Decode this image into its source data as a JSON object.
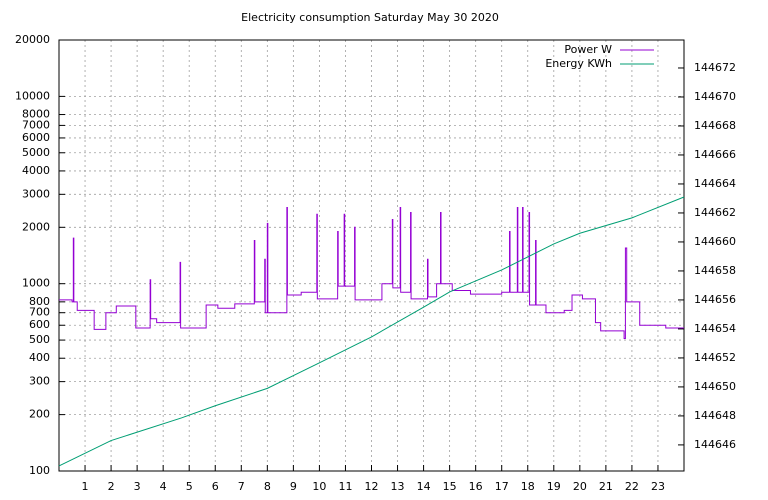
{
  "chart_data": {
    "type": "line",
    "title": "Electricity consumption Saturday May 30 2020",
    "xlim": [
      0,
      24
    ],
    "xticks": [
      1,
      2,
      3,
      4,
      5,
      6,
      7,
      8,
      9,
      10,
      11,
      12,
      13,
      14,
      15,
      16,
      17,
      18,
      19,
      20,
      21,
      22,
      23
    ],
    "ylim": [
      100,
      20000
    ],
    "log_y": true,
    "yticks": [
      100,
      200,
      300,
      400,
      500,
      600,
      700,
      800,
      1000,
      2000,
      3000,
      4000,
      5000,
      6000,
      7000,
      8000,
      10000,
      20000
    ],
    "y2lim": [
      144644.2,
      144673.93
    ],
    "y2ticks": [
      144646,
      144648,
      144650,
      144652,
      144654,
      144656,
      144658,
      144660,
      144662,
      144664,
      144666,
      144668,
      144670,
      144672
    ],
    "grid": true,
    "legend": "top-right",
    "series": [
      {
        "name": "Power W",
        "color": "#9400d3",
        "x": [
          0,
          0.5,
          0.5,
          0.55,
          0.55,
          0.57,
          0.57,
          0.7,
          0.7,
          1.35,
          1.35,
          1.8,
          1.8,
          2.2,
          2.2,
          2.95,
          2.95,
          3.5,
          3.5,
          3.52,
          3.52,
          3.75,
          3.75,
          4.65,
          4.65,
          4.67,
          4.67,
          5.65,
          5.65,
          6.1,
          6.1,
          6.75,
          6.75,
          7.5,
          7.5,
          7.52,
          7.52,
          7.9,
          7.9,
          7.92,
          7.92,
          8.0,
          8.0,
          8.02,
          8.02,
          8.75,
          8.75,
          8.77,
          8.77,
          9.3,
          9.3,
          9.9,
          9.9,
          9.92,
          9.92,
          10.7,
          10.7,
          10.72,
          10.72,
          10.95,
          10.95,
          10.97,
          10.97,
          11.35,
          11.35,
          11.37,
          11.37,
          12.4,
          12.4,
          12.8,
          12.8,
          12.82,
          12.82,
          13.1,
          13.1,
          13.12,
          13.12,
          13.5,
          13.5,
          13.52,
          13.52,
          14.15,
          14.15,
          14.17,
          14.17,
          14.5,
          14.5,
          14.65,
          14.65,
          14.67,
          14.67,
          15.1,
          15.1,
          15.8,
          15.8,
          17.0,
          17.0,
          17.3,
          17.3,
          17.32,
          17.32,
          17.6,
          17.6,
          17.62,
          17.62,
          17.8,
          17.8,
          17.82,
          17.82,
          18.05,
          18.05,
          18.07,
          18.07,
          18.3,
          18.3,
          18.32,
          18.32,
          18.7,
          18.7,
          19.4,
          19.4,
          19.7,
          19.7,
          20.1,
          20.1,
          20.6,
          20.6,
          20.8,
          20.8,
          21.7,
          21.7,
          21.75,
          21.75,
          21.8,
          21.8,
          22.3,
          22.3,
          23.3,
          23.3,
          24
        ],
        "values": [
          820,
          820,
          800,
          800,
          1750,
          1750,
          800,
          800,
          720,
          720,
          570,
          570,
          700,
          700,
          760,
          760,
          580,
          580,
          1050,
          1050,
          650,
          650,
          620,
          620,
          1300,
          1300,
          580,
          580,
          770,
          770,
          740,
          740,
          780,
          780,
          1700,
          1700,
          800,
          800,
          1350,
          1350,
          700,
          700,
          2100,
          2100,
          700,
          700,
          2550,
          2550,
          870,
          870,
          900,
          900,
          2350,
          2350,
          830,
          830,
          1900,
          1900,
          970,
          970,
          2350,
          2350,
          970,
          970,
          2000,
          2000,
          820,
          820,
          1000,
          1000,
          2200,
          2200,
          950,
          950,
          2550,
          2550,
          900,
          900,
          2400,
          2400,
          830,
          830,
          1350,
          1350,
          850,
          850,
          1000,
          1000,
          2400,
          2400,
          1000,
          1000,
          920,
          920,
          880,
          880,
          900,
          900,
          1900,
          1900,
          900,
          900,
          2550,
          2550,
          900,
          900,
          2550,
          2550,
          900,
          900,
          2400,
          2400,
          770,
          770,
          1700,
          1700,
          770,
          770,
          700,
          700,
          720,
          720,
          870,
          870,
          830,
          830,
          620,
          620,
          560,
          560,
          510,
          510,
          1550,
          1550,
          800,
          800,
          600,
          600,
          580,
          580
        ]
      },
      {
        "name": "Energy KWh",
        "color": "#009e73",
        "axis": "y2",
        "x": [
          0,
          2,
          4.7,
          6,
          8,
          10,
          12,
          14,
          15,
          17,
          19,
          20,
          22,
          24
        ],
        "values": [
          144644.55,
          144646.3,
          144647.86,
          144648.7,
          144649.9,
          144651.66,
          144653.45,
          144655.5,
          144656.55,
          144658.07,
          144659.86,
          144660.6,
          144661.66,
          144663.1
        ]
      }
    ]
  }
}
